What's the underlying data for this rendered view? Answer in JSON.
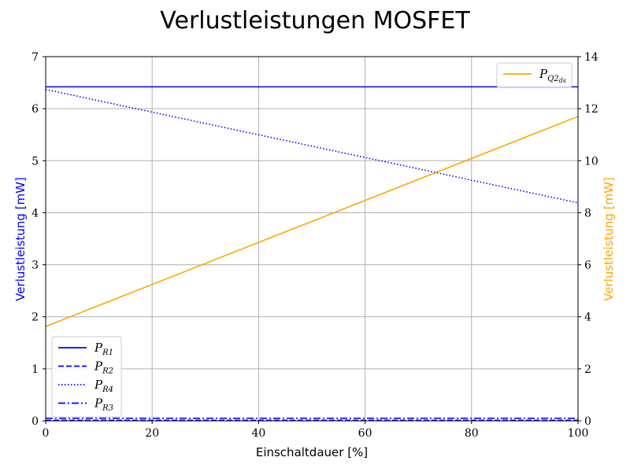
{
  "chart_data": {
    "type": "line",
    "title": "Verlustleistungen MOSFET",
    "xlabel": "Einschaltdauer [%]",
    "ylabel_left": "Verlustleistung [mW]",
    "ylabel_right": "Verlustleistung [mW]",
    "xlim": [
      0,
      100
    ],
    "ylim_left": [
      0,
      7
    ],
    "ylim_right": [
      0,
      14
    ],
    "xticks": [
      "0",
      "20",
      "40",
      "60",
      "80",
      "100"
    ],
    "yticks_left": [
      "0",
      "1",
      "2",
      "3",
      "4",
      "5",
      "6",
      "7"
    ],
    "yticks_right": [
      "0",
      "2",
      "4",
      "6",
      "8",
      "10",
      "12",
      "14"
    ],
    "grid": true,
    "legend_left_placement": "lower-left",
    "legend_right_placement": "upper-right",
    "series_left": [
      {
        "name": "P",
        "sub": "R1",
        "color": "#0000ff",
        "style": "solid",
        "x": [
          0,
          100
        ],
        "y": [
          6.42,
          6.42
        ]
      },
      {
        "name": "P",
        "sub": "R2",
        "color": "#0000ff",
        "style": "dashed",
        "x": [
          0,
          100
        ],
        "y": [
          0.01,
          0.01
        ]
      },
      {
        "name": "P",
        "sub": "R4",
        "color": "#0000ff",
        "style": "dotted",
        "x": [
          0,
          100
        ],
        "y": [
          6.37,
          4.19
        ]
      },
      {
        "name": "P",
        "sub": "R3",
        "color": "#0000ff",
        "style": "dashdot",
        "x": [
          0,
          100
        ],
        "y": [
          0.05,
          0.05
        ]
      }
    ],
    "series_right": [
      {
        "name": "P",
        "sub": "Q2",
        "subsub": "ds",
        "color": "#ffa500",
        "style": "solid",
        "x": [
          0,
          100
        ],
        "y": [
          3.63,
          11.7
        ]
      }
    ]
  }
}
